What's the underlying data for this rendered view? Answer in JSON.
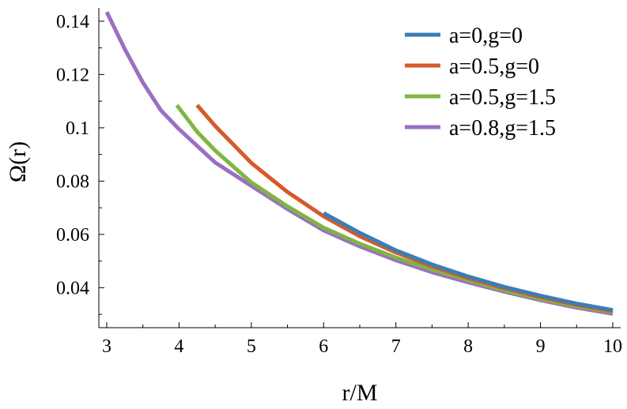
{
  "chart_data": {
    "type": "line",
    "xlabel": "r/M",
    "ylabel": "Ω(r)",
    "xlim": [
      3,
      10
    ],
    "ylim": [
      0.025,
      0.145
    ],
    "xticks": [
      "3",
      "4",
      "5",
      "6",
      "7",
      "8",
      "9",
      "10"
    ],
    "yticks": [
      "0.04",
      "0.06",
      "0.08",
      "0.1",
      "0.12",
      "0.14"
    ],
    "legend_position": "top-right",
    "grid": false,
    "series": [
      {
        "name": "a=0,g=0",
        "color": "#3a7eb6",
        "x": [
          6,
          6.5,
          7,
          7.5,
          8,
          8.5,
          9,
          9.5,
          10
        ],
        "y": [
          0.068,
          0.0606,
          0.054,
          0.0487,
          0.0442,
          0.0403,
          0.037,
          0.034,
          0.0316
        ]
      },
      {
        "name": "a=0.5,g=0",
        "color": "#d65a2a",
        "x": [
          4.25,
          4.5,
          5,
          5.5,
          6,
          6.5,
          7,
          7.5,
          8,
          8.5,
          9,
          9.5,
          10
        ],
        "y": [
          0.1085,
          0.1007,
          0.0868,
          0.0759,
          0.0668,
          0.0593,
          0.0532,
          0.048,
          0.0436,
          0.0398,
          0.0365,
          0.0336,
          0.0312
        ]
      },
      {
        "name": "a=0.5,g=1.5",
        "color": "#80b540",
        "x": [
          3.97,
          4.25,
          4.5,
          5,
          5.5,
          6,
          6.5,
          7,
          7.5,
          8,
          8.5,
          9,
          9.5,
          10
        ],
        "y": [
          0.1085,
          0.0985,
          0.0915,
          0.0795,
          0.0705,
          0.0625,
          0.0565,
          0.0513,
          0.0468,
          0.0428,
          0.039,
          0.0358,
          0.033,
          0.0308
        ]
      },
      {
        "name": "a=0.8,g=1.5",
        "color": "#9b6fc4",
        "x": [
          3,
          3.25,
          3.5,
          3.75,
          4,
          4.5,
          5,
          5.5,
          6,
          6.5,
          7,
          7.5,
          8,
          8.5,
          9,
          9.5,
          10
        ],
        "y": [
          0.1435,
          0.1295,
          0.117,
          0.1065,
          0.0995,
          0.087,
          0.0782,
          0.0695,
          0.0615,
          0.0555,
          0.0503,
          0.0458,
          0.042,
          0.0385,
          0.0353,
          0.0325,
          0.0302
        ]
      }
    ]
  }
}
